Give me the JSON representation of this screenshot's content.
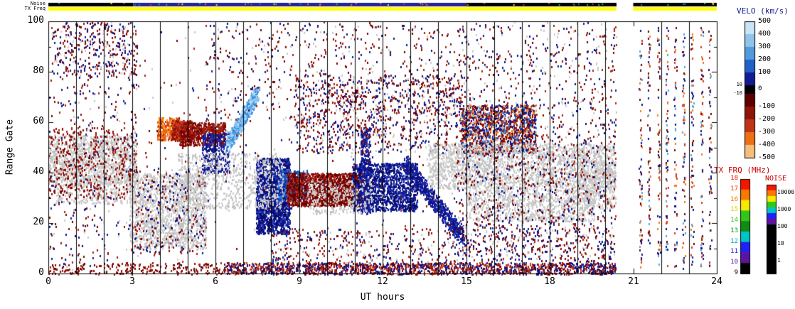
{
  "chart_data": {
    "type": "heatmap",
    "title": "",
    "xlabel": "UT hours",
    "ylabel": "Range Gate",
    "xlim": [
      0,
      24
    ],
    "ylim": [
      0,
      100
    ],
    "xticks": [
      "0",
      "3",
      "6",
      "9",
      "12",
      "15",
      "18",
      "21",
      "24"
    ],
    "yticks": [
      "0",
      "20",
      "40",
      "60",
      "80",
      "100"
    ],
    "hour_lines": [
      1,
      2,
      3,
      4,
      5,
      6,
      7,
      8,
      9,
      10,
      11,
      12,
      13,
      14,
      15,
      16,
      17,
      18,
      19,
      20,
      22,
      23
    ],
    "data_gap_ut": [
      20.4,
      21.0
    ],
    "strips": {
      "noise": {
        "label": "Noise",
        "segments": [
          {
            "t": [
              0,
              3.05
            ],
            "color": "#000000"
          },
          {
            "t": [
              3.05,
              15.0
            ],
            "color": "#26209E"
          },
          {
            "t": [
              15.0,
              20.4
            ],
            "color": "#000000"
          },
          {
            "t": [
              21.0,
              24
            ],
            "color": "#000000"
          }
        ],
        "specks": {
          "n": 55,
          "palette": [
            "#30C818",
            "#F8E800",
            "#F87800",
            "#C93A20",
            "#2470CC"
          ]
        }
      },
      "tx_freq": {
        "label": "TX Freq",
        "segments": [
          {
            "t": [
              0,
              20.4
            ],
            "color": "#FFFF00"
          },
          {
            "t": [
              21.0,
              24
            ],
            "color": "#FFFF00"
          }
        ]
      }
    },
    "legends": {
      "velocity": {
        "title": "VELO (km/s)",
        "ticks_right": [
          "500",
          "400",
          "300",
          "200",
          "100",
          "0",
          "-100",
          "-200",
          "-300",
          "-400",
          "-500"
        ],
        "ticks_left": [
          "10",
          "-10"
        ],
        "colors": [
          "#C8E4F5",
          "#8FC4EC",
          "#509BDC",
          "#2060C8",
          "#101C96",
          "#000000",
          "#5E0000",
          "#8E1508",
          "#C03418",
          "#EC7014",
          "#F6BE7C"
        ]
      },
      "tx_freq": {
        "title": "TX FRQ (MHz)",
        "ticks": [
          "18",
          "17",
          "16",
          "15",
          "14",
          "13",
          "12",
          "11",
          "10",
          "9"
        ],
        "tick_colors": [
          "#F81400",
          "#F83C00",
          "#F87800",
          "#E0D000",
          "#30C818",
          "#108C10",
          "#00A4A4",
          "#2020F8",
          "#5C14A0",
          "#000000"
        ],
        "colors": [
          "#F81400",
          "#F87800",
          "#F8E800",
          "#30C818",
          "#108C10",
          "#00C4C4",
          "#2020F8",
          "#5C14A0",
          "#000000"
        ]
      },
      "noise": {
        "title": "NOISE",
        "ticks": [
          "10000",
          "1000",
          "100",
          "10",
          "1"
        ],
        "colors": [
          "#F81400",
          "#F87800",
          "#F8E800",
          "#30C818",
          "#00C4C4",
          "#2020F8",
          "#5C14A0"
        ]
      }
    },
    "palettes": {
      "gs": [
        "#C9C9C9",
        "#C0C0C0",
        "#D2D2D2"
      ],
      "neg": [
        "#730000",
        "#8E0F0A",
        "#A32414"
      ],
      "neg2": [
        "#730000",
        "#8E0F0A",
        "#B53020",
        "#5E0000"
      ],
      "red2": [
        "#C93A20",
        "#A81C10",
        "#8E0F0A"
      ],
      "hot": [
        "#F07818",
        "#FF8C00",
        "#E85A10",
        "#C93A20"
      ],
      "pos": [
        "#101C96",
        "#0B1080",
        "#232FB0"
      ],
      "pos2": [
        "#0B1080",
        "#101C96",
        "#060A60",
        "#2A3ABF"
      ],
      "blue": [
        "#2470CC",
        "#3A86E0",
        "#1048C0",
        "#101C96"
      ],
      "pale": [
        "#A9D7F5",
        "#7FC0EE",
        "#55A2E0",
        "#3A86E0"
      ],
      "mix": [
        "#730000",
        "#101C96",
        "#8E0F0A",
        "#0B1080",
        "#C9C9C9",
        "#A32414"
      ],
      "colorful": [
        "#101C96",
        "#2470CC",
        "#730000",
        "#C93A20",
        "#F07818",
        "#0B1080",
        "#C9C9C9",
        "#8E0F0A"
      ],
      "bb": [
        "#730000",
        "#101C96",
        "#A32414",
        "#0B1080",
        "#C93A20"
      ],
      "cols": [
        "#101C96",
        "#730000",
        "#55A2E0",
        "#C93A20",
        "#0B1080",
        "#F07818"
      ]
    },
    "clusters": [
      {
        "t": [
          0,
          3.15
        ],
        "g": [
          36,
          55
        ],
        "n": 1400,
        "p": "gs"
      },
      {
        "t": [
          0.2,
          3.1
        ],
        "g": [
          28,
          36
        ],
        "n": 280,
        "p": "gs"
      },
      {
        "t": [
          0,
          3.15
        ],
        "g": [
          30,
          58
        ],
        "n": 380,
        "p": "neg"
      },
      {
        "t": [
          0.1,
          3.2
        ],
        "g": [
          78,
          100
        ],
        "n": 380,
        "p": "mix"
      },
      {
        "t": [
          0,
          3.2
        ],
        "g": [
          2,
          78
        ],
        "n": 260,
        "p": "mix"
      },
      {
        "t": [
          2.9,
          5.65
        ],
        "g": [
          10,
          40
        ],
        "n": 1500,
        "p": "gs"
      },
      {
        "t": [
          2.9,
          5.65
        ],
        "g": [
          8,
          42
        ],
        "n": 300,
        "p": "mix"
      },
      {
        "t": [
          3.9,
          4.7
        ],
        "g": [
          53,
          62
        ],
        "n": 300,
        "p": "hot"
      },
      {
        "t": [
          4.4,
          5.15
        ],
        "g": [
          53,
          61
        ],
        "n": 260,
        "p": "red2"
      },
      {
        "t": [
          4.7,
          6.35
        ],
        "g": [
          51,
          60
        ],
        "n": 620,
        "p": "neg"
      },
      {
        "t": [
          5.5,
          6.5
        ],
        "g": [
          40,
          56
        ],
        "n": 330,
        "p": "pos"
      },
      {
        "line": {
          "from": [
            6.4,
            51
          ],
          "to": [
            7.5,
            72
          ],
          "w": 6
        },
        "n": 560,
        "p": "pale"
      },
      {
        "t": [
          7.45,
          8.65
        ],
        "g": [
          16,
          46
        ],
        "n": 1600,
        "p": "pos2"
      },
      {
        "t": [
          8.2,
          9.3
        ],
        "g": [
          29,
          41
        ],
        "n": 430,
        "p": "blue"
      },
      {
        "t": [
          8.55,
          11.4
        ],
        "g": [
          27,
          40
        ],
        "n": 1700,
        "p": "neg2"
      },
      {
        "t": [
          10.9,
          13.25
        ],
        "g": [
          25,
          44
        ],
        "n": 1450,
        "p": "pos2"
      },
      {
        "t": [
          11.2,
          11.55
        ],
        "g": [
          24,
          58
        ],
        "n": 300,
        "p": "pos"
      },
      {
        "line": {
          "from": [
            12.8,
            44
          ],
          "to": [
            14.85,
            15
          ],
          "w": 7
        },
        "n": 650,
        "p": "pos"
      },
      {
        "t": [
          8.8,
          14.85
        ],
        "g": [
          57,
          79
        ],
        "n": 700,
        "p": "mix"
      },
      {
        "t": [
          8.9,
          14.3
        ],
        "g": [
          48,
          57
        ],
        "n": 260,
        "p": "mix"
      },
      {
        "t": [
          4.6,
          8.4
        ],
        "g": [
          26,
          48
        ],
        "n": 800,
        "p": "gs"
      },
      {
        "t": [
          9.3,
          11.6
        ],
        "g": [
          24,
          37
        ],
        "n": 300,
        "p": "gs"
      },
      {
        "t": [
          14.8,
          17.5
        ],
        "g": [
          48,
          67
        ],
        "n": 1500,
        "p": "colorful"
      },
      {
        "t": [
          13.6,
          20.35
        ],
        "g": [
          34,
          52
        ],
        "n": 2200,
        "p": "gs"
      },
      {
        "t": [
          15.0,
          19.6
        ],
        "g": [
          21,
          34
        ],
        "n": 850,
        "p": "gs"
      },
      {
        "t": [
          19.0,
          20.35
        ],
        "g": [
          26,
          45
        ],
        "n": 380,
        "p": "gs"
      },
      {
        "t": [
          14.6,
          20.35
        ],
        "g": [
          20,
          60
        ],
        "n": 700,
        "p": "mix"
      },
      {
        "t": [
          6.4,
          20.35
        ],
        "g": [
          0,
          4.5
        ],
        "n": 1600,
        "p": "bb"
      },
      {
        "t": [
          0,
          6.4
        ],
        "g": [
          0,
          4.5
        ],
        "n": 220,
        "p": "neg"
      },
      {
        "t": [
          14.8,
          20.3
        ],
        "g": [
          5,
          20
        ],
        "n": 480,
        "p": "mix"
      },
      {
        "t": [
          8.0,
          14.8
        ],
        "g": [
          4,
          18
        ],
        "n": 330,
        "p": "mix"
      },
      {
        "t": [
          5.6,
          14.6
        ],
        "g": [
          60,
          100
        ],
        "n": 520,
        "p": "mix"
      },
      {
        "t": [
          14.6,
          20.4
        ],
        "g": [
          60,
          100
        ],
        "n": 430,
        "p": "mix"
      },
      {
        "t": [
          0,
          20.4
        ],
        "g": [
          0,
          100
        ],
        "n": 600,
        "p": "mix"
      },
      {
        "t": [
          21.2,
          21.3
        ],
        "g": [
          2,
          98
        ],
        "n": 70,
        "p": "cols"
      },
      {
        "t": [
          21.5,
          21.6
        ],
        "g": [
          2,
          98
        ],
        "n": 70,
        "p": "cols"
      },
      {
        "t": [
          21.85,
          21.95
        ],
        "g": [
          2,
          98
        ],
        "n": 65,
        "p": "cols"
      },
      {
        "t": [
          22.15,
          22.25
        ],
        "g": [
          2,
          98
        ],
        "n": 70,
        "p": "cols"
      },
      {
        "t": [
          22.45,
          22.55
        ],
        "g": [
          2,
          98
        ],
        "n": 60,
        "p": "cols"
      },
      {
        "t": [
          22.75,
          22.85
        ],
        "g": [
          2,
          98
        ],
        "n": 65,
        "p": "cols"
      },
      {
        "t": [
          23.05,
          23.15
        ],
        "g": [
          2,
          98
        ],
        "n": 60,
        "p": "cols"
      },
      {
        "t": [
          23.4,
          23.5
        ],
        "g": [
          2,
          98
        ],
        "n": 65,
        "p": "cols"
      },
      {
        "t": [
          23.7,
          23.8
        ],
        "g": [
          2,
          98
        ],
        "n": 60,
        "p": "cols"
      }
    ]
  }
}
